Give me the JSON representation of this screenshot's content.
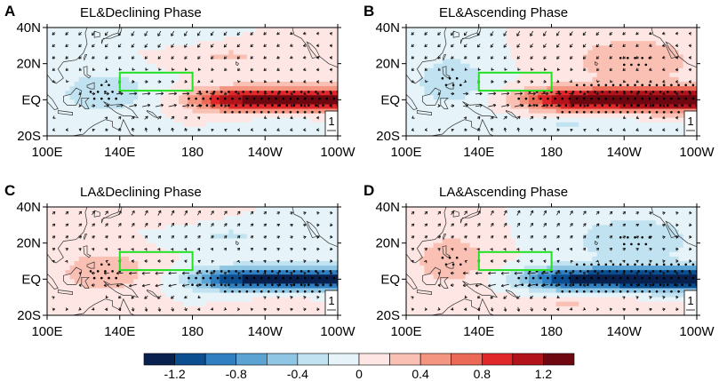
{
  "chart_data": {
    "type": "heatmap",
    "variable_units": "shading with stippling and wind vectors",
    "x_ticks": [
      "100E",
      "140E",
      "180",
      "140W",
      "100W"
    ],
    "y_ticks": [
      "40N",
      "20N",
      "EQ",
      "20S"
    ],
    "lon_range": [
      100,
      260
    ],
    "lat_range": [
      -20,
      40
    ],
    "box_region": {
      "lon": [
        140,
        180
      ],
      "lat": [
        5,
        15
      ]
    },
    "reference_vector_label": "1",
    "colorbar": {
      "levels": [
        -1.4,
        -1.2,
        -1.0,
        -0.8,
        -0.6,
        -0.4,
        -0.2,
        0,
        0.2,
        0.4,
        0.6,
        0.8,
        1.0,
        1.2,
        1.4
      ],
      "tick_labels": [
        "-1.2",
        "-0.8",
        "-0.4",
        "0",
        "0.4",
        "0.8",
        "1.2"
      ],
      "colors": [
        "#08214f",
        "#0b4f91",
        "#2f7fc1",
        "#5ba3d3",
        "#8fc6e3",
        "#c1e2f0",
        "#e6f4f9",
        "#fde6e3",
        "#f9c0b3",
        "#f49582",
        "#ea6a57",
        "#e0282a",
        "#b3141b",
        "#6f0710"
      ]
    },
    "panels": [
      {
        "letter": "A",
        "title": "EL&Declining Phase",
        "sign": 1,
        "pattern": "declining"
      },
      {
        "letter": "B",
        "title": "EL&Ascending Phase",
        "sign": 1,
        "pattern": "ascending"
      },
      {
        "letter": "C",
        "title": "LA&Declining Phase",
        "sign": -1,
        "pattern": "declining"
      },
      {
        "letter": "D",
        "title": "LA&Ascending Phase",
        "sign": -1,
        "pattern": "ascending"
      }
    ]
  }
}
